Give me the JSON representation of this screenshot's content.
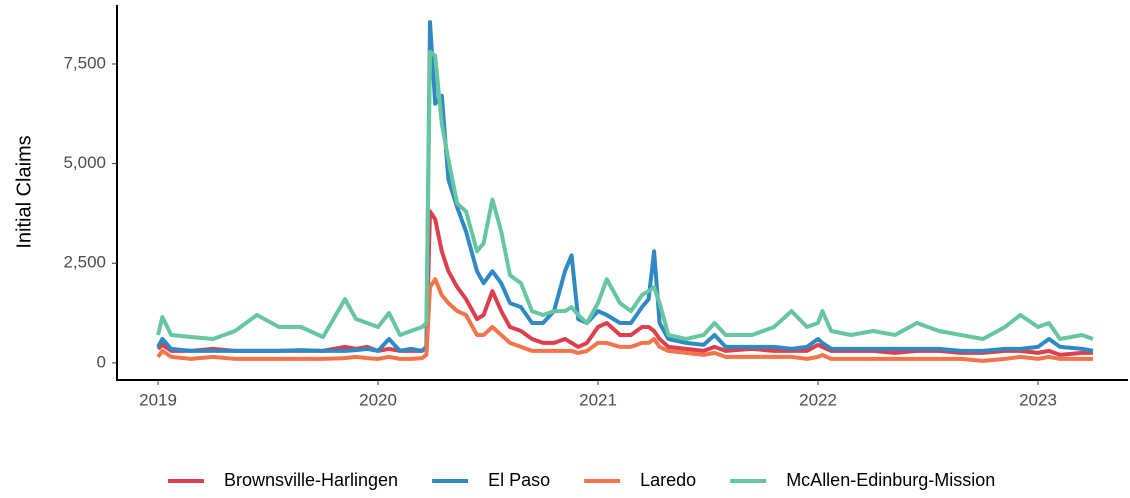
{
  "chart_data": {
    "type": "line",
    "y_label": "Initial Claims",
    "x": [
      2019.0,
      2019.02,
      2019.06,
      2019.15,
      2019.25,
      2019.35,
      2019.45,
      2019.55,
      2019.65,
      2019.75,
      2019.85,
      2019.9,
      2019.95,
      2020.0,
      2020.05,
      2020.1,
      2020.15,
      2020.2,
      2020.22,
      2020.236,
      2020.26,
      2020.29,
      2020.32,
      2020.36,
      2020.4,
      2020.45,
      2020.48,
      2020.52,
      2020.56,
      2020.6,
      2020.65,
      2020.7,
      2020.75,
      2020.8,
      2020.85,
      2020.88,
      2020.91,
      2020.95,
      2021.0,
      2021.04,
      2021.1,
      2021.15,
      2021.2,
      2021.23,
      2021.255,
      2021.28,
      2021.32,
      2021.4,
      2021.48,
      2021.53,
      2021.58,
      2021.7,
      2021.8,
      2021.88,
      2021.95,
      2022.0,
      2022.02,
      2022.06,
      2022.15,
      2022.25,
      2022.35,
      2022.45,
      2022.55,
      2022.65,
      2022.75,
      2022.85,
      2022.92,
      2023.0,
      2023.05,
      2023.1,
      2023.2,
      2023.25
    ],
    "series": [
      {
        "name": "Brownsville-Harlingen",
        "color": "#dc3f4d",
        "values": [
          350,
          450,
          300,
          300,
          350,
          300,
          300,
          300,
          300,
          300,
          400,
          350,
          400,
          300,
          350,
          300,
          300,
          300,
          400,
          3800,
          3600,
          2800,
          2300,
          1900,
          1600,
          1100,
          1200,
          1800,
          1300,
          900,
          800,
          600,
          500,
          500,
          600,
          500,
          400,
          500,
          900,
          1000,
          700,
          700,
          900,
          900,
          800,
          600,
          400,
          350,
          300,
          400,
          300,
          350,
          300,
          300,
          300,
          450,
          400,
          300,
          300,
          300,
          250,
          300,
          300,
          250,
          250,
          300,
          300,
          250,
          300,
          200,
          250,
          250
        ]
      },
      {
        "name": "El Paso",
        "color": "#2f8ac4",
        "values": [
          400,
          600,
          350,
          300,
          300,
          300,
          300,
          300,
          320,
          300,
          300,
          320,
          350,
          300,
          600,
          300,
          350,
          300,
          400,
          8550,
          6500,
          6700,
          4600,
          3900,
          3300,
          2300,
          2000,
          2300,
          2000,
          1500,
          1400,
          1000,
          1000,
          1300,
          2300,
          2700,
          1100,
          1000,
          1300,
          1200,
          1000,
          1000,
          1400,
          1600,
          2800,
          1000,
          600,
          500,
          450,
          700,
          400,
          400,
          400,
          350,
          400,
          600,
          500,
          350,
          350,
          350,
          350,
          350,
          350,
          300,
          300,
          350,
          350,
          400,
          600,
          400,
          350,
          300
        ]
      },
      {
        "name": "Laredo",
        "color": "#f2744a",
        "values": [
          150,
          300,
          150,
          100,
          150,
          100,
          100,
          100,
          100,
          100,
          120,
          150,
          120,
          100,
          150,
          100,
          100,
          120,
          200,
          1900,
          2100,
          1700,
          1500,
          1300,
          1200,
          700,
          700,
          900,
          700,
          500,
          400,
          300,
          300,
          300,
          300,
          300,
          250,
          300,
          500,
          500,
          400,
          400,
          500,
          500,
          600,
          400,
          300,
          250,
          200,
          250,
          150,
          150,
          150,
          150,
          100,
          150,
          200,
          100,
          100,
          100,
          100,
          100,
          100,
          100,
          50,
          100,
          150,
          100,
          150,
          100,
          100,
          100
        ]
      },
      {
        "name": "McAllen-Edinburg-Mission",
        "color": "#66c6a0",
        "values": [
          700,
          1150,
          700,
          650,
          600,
          800,
          1200,
          900,
          900,
          650,
          1600,
          1100,
          1000,
          900,
          1250,
          700,
          800,
          900,
          1000,
          7800,
          7700,
          6000,
          5100,
          4000,
          3800,
          2800,
          3000,
          4100,
          3300,
          2200,
          2000,
          1300,
          1200,
          1300,
          1300,
          1400,
          1200,
          1000,
          1500,
          2100,
          1500,
          1300,
          1700,
          1800,
          1900,
          1500,
          700,
          600,
          700,
          1000,
          700,
          700,
          900,
          1300,
          900,
          1000,
          1300,
          800,
          700,
          800,
          700,
          1000,
          800,
          700,
          600,
          900,
          1200,
          900,
          1000,
          600,
          700,
          600
        ]
      }
    ],
    "xlim": [
      2018.818,
      2023.409
    ],
    "xticks": [
      2019,
      2020,
      2021,
      2022,
      2023
    ],
    "ylim": [
      -430,
      8980
    ],
    "yticks": [
      0,
      {
        "value": 2500,
        "label": "2,500"
      },
      {
        "value": 5000,
        "label": "5,000"
      },
      {
        "value": 7500,
        "label": "7,500"
      }
    ],
    "legend": "bottom"
  }
}
